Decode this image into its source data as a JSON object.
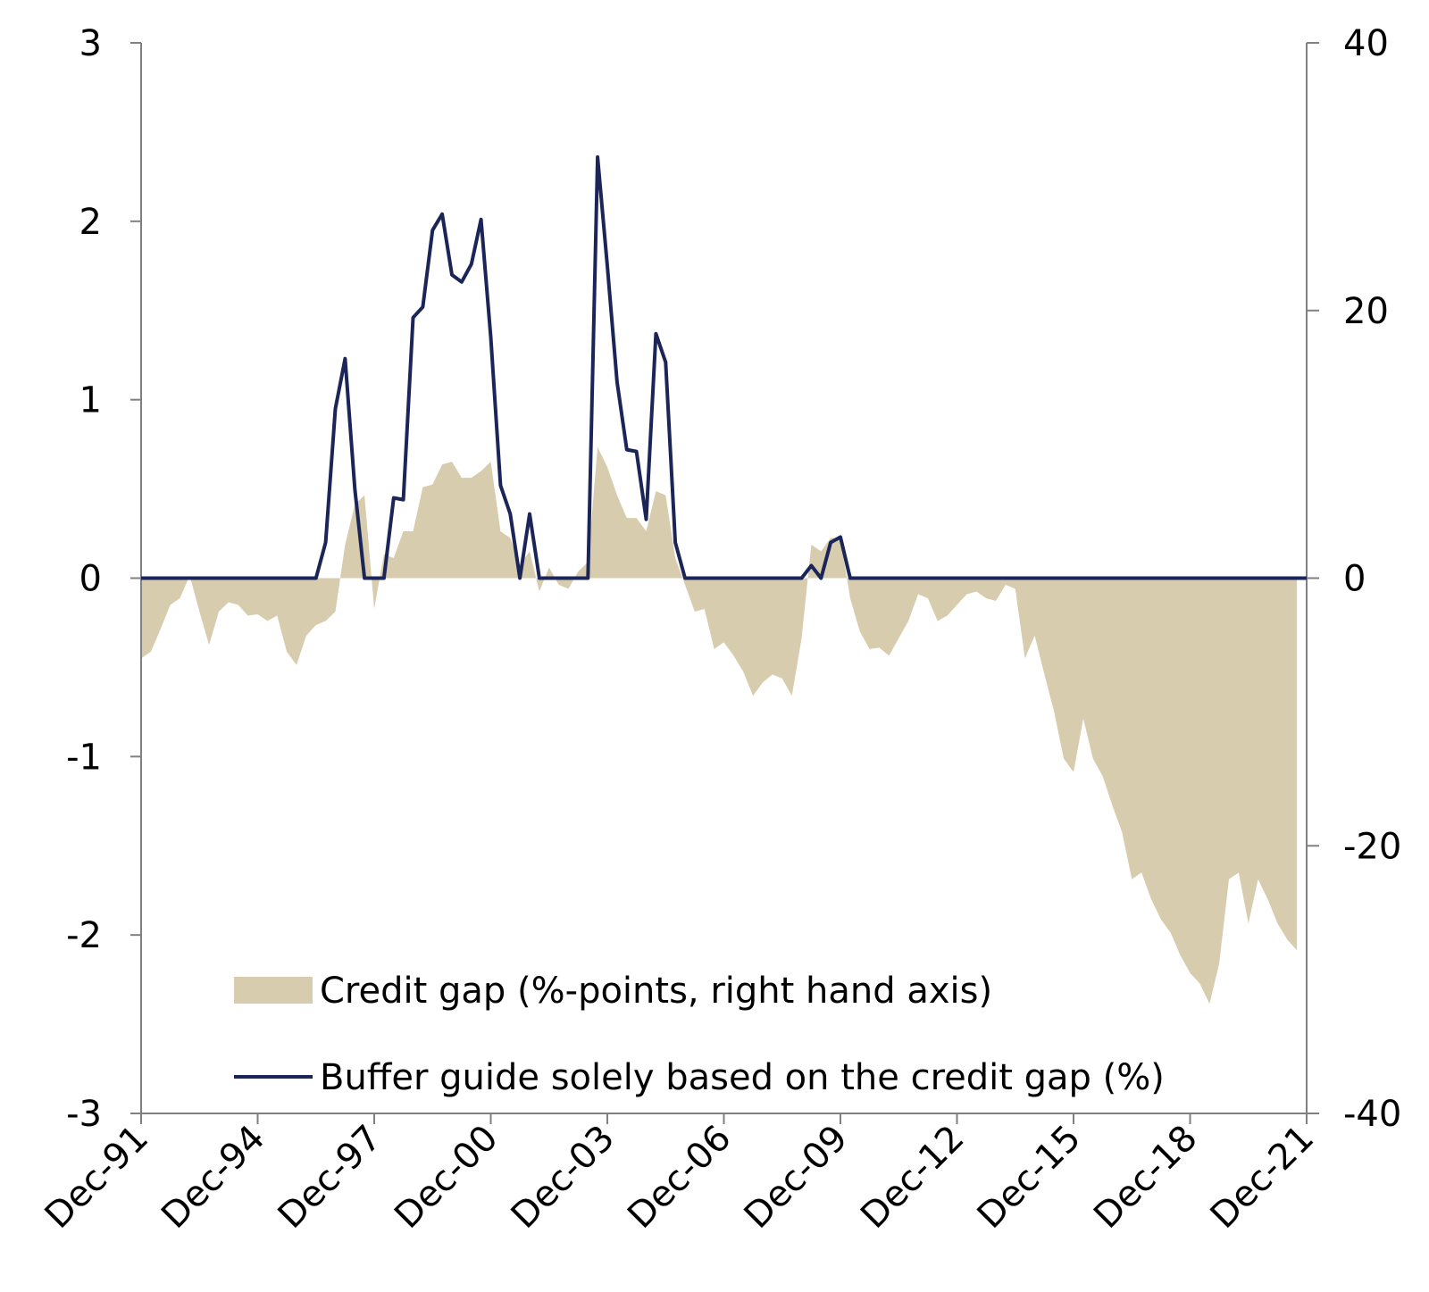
{
  "chart_data": {
    "type": "area",
    "x_ticks": [
      "Dec-91",
      "Dec-94",
      "Dec-97",
      "Dec-00",
      "Dec-03",
      "Dec-06",
      "Dec-09",
      "Dec-12",
      "Dec-15",
      "Dec-18",
      "Dec-21"
    ],
    "x_range": [
      "1991-12",
      "2021-12"
    ],
    "y_left": {
      "ticks": [
        "3",
        "2",
        "1",
        "0",
        "-1",
        "-2",
        "-3"
      ],
      "range": [
        -3,
        3
      ]
    },
    "y_right": {
      "ticks": [
        "40",
        "20",
        "0",
        "-20",
        "-40"
      ],
      "range": [
        -40,
        40
      ]
    },
    "grid": false,
    "legend_position": "bottom-left, inside plot",
    "series": [
      {
        "name": "Credit gap (%-points, right hand axis)",
        "kind": "area",
        "axis": "right",
        "color": "#d8ccae",
        "points": [
          [
            "1991-12",
            -6.0
          ],
          [
            "1992-03",
            -5.5
          ],
          [
            "1992-06",
            -3.8
          ],
          [
            "1992-09",
            -2.0
          ],
          [
            "1992-12",
            -1.5
          ],
          [
            "1993-03",
            0.2
          ],
          [
            "1993-06",
            -2.5
          ],
          [
            "1993-09",
            -5.0
          ],
          [
            "1993-12",
            -2.5
          ],
          [
            "1994-03",
            -1.8
          ],
          [
            "1994-06",
            -2.0
          ],
          [
            "1994-09",
            -2.8
          ],
          [
            "1994-12",
            -2.7
          ],
          [
            "1995-03",
            -3.2
          ],
          [
            "1995-06",
            -2.8
          ],
          [
            "1995-09",
            -5.5
          ],
          [
            "1995-12",
            -6.5
          ],
          [
            "1996-03",
            -4.3
          ],
          [
            "1996-06",
            -3.5
          ],
          [
            "1996-09",
            -3.2
          ],
          [
            "1996-12",
            -2.5
          ],
          [
            "1997-03",
            2.5
          ],
          [
            "1997-06",
            5.5
          ],
          [
            "1997-09",
            6.2
          ],
          [
            "1997-12",
            -2.3
          ],
          [
            "1998-03",
            1.8
          ],
          [
            "1998-06",
            1.5
          ],
          [
            "1998-09",
            3.5
          ],
          [
            "1998-12",
            3.5
          ],
          [
            "1999-03",
            6.8
          ],
          [
            "1999-06",
            7.0
          ],
          [
            "1999-09",
            8.5
          ],
          [
            "1999-12",
            8.7
          ],
          [
            "2000-03",
            7.5
          ],
          [
            "2000-06",
            7.5
          ],
          [
            "2000-09",
            8.0
          ],
          [
            "2000-12",
            8.7
          ],
          [
            "2001-03",
            3.5
          ],
          [
            "2001-06",
            3.0
          ],
          [
            "2001-09",
            1.0
          ],
          [
            "2001-12",
            2.0
          ],
          [
            "2002-03",
            -1.0
          ],
          [
            "2002-06",
            0.8
          ],
          [
            "2002-09",
            -0.5
          ],
          [
            "2002-12",
            -0.8
          ],
          [
            "2003-03",
            0.5
          ],
          [
            "2003-06",
            1.2
          ],
          [
            "2003-09",
            9.8
          ],
          [
            "2003-12",
            8.3
          ],
          [
            "2004-03",
            6.2
          ],
          [
            "2004-06",
            4.5
          ],
          [
            "2004-09",
            4.5
          ],
          [
            "2004-12",
            3.5
          ],
          [
            "2005-03",
            6.5
          ],
          [
            "2005-06",
            6.2
          ],
          [
            "2005-09",
            1.5
          ],
          [
            "2005-12",
            -0.5
          ],
          [
            "2006-03",
            -2.5
          ],
          [
            "2006-06",
            -2.3
          ],
          [
            "2006-09",
            -5.3
          ],
          [
            "2006-12",
            -4.8
          ],
          [
            "2007-03",
            -5.8
          ],
          [
            "2007-06",
            -7.0
          ],
          [
            "2007-09",
            -8.8
          ],
          [
            "2007-12",
            -7.8
          ],
          [
            "2008-03",
            -7.2
          ],
          [
            "2008-06",
            -7.5
          ],
          [
            "2008-09",
            -8.8
          ],
          [
            "2008-12",
            -4.5
          ],
          [
            "2009-03",
            2.5
          ],
          [
            "2009-06",
            2.0
          ],
          [
            "2009-09",
            3.0
          ],
          [
            "2009-12",
            3.0
          ],
          [
            "2010-03",
            -1.5
          ],
          [
            "2010-06",
            -4.0
          ],
          [
            "2010-09",
            -5.3
          ],
          [
            "2010-12",
            -5.2
          ],
          [
            "2011-03",
            -5.8
          ],
          [
            "2011-06",
            -4.5
          ],
          [
            "2011-09",
            -3.2
          ],
          [
            "2011-12",
            -1.2
          ],
          [
            "2012-03",
            -1.5
          ],
          [
            "2012-06",
            -3.2
          ],
          [
            "2012-09",
            -2.8
          ],
          [
            "2012-12",
            -2.0
          ],
          [
            "2013-03",
            -1.2
          ],
          [
            "2013-06",
            -1.0
          ],
          [
            "2013-09",
            -1.5
          ],
          [
            "2013-12",
            -1.7
          ],
          [
            "2014-03",
            -0.5
          ],
          [
            "2014-06",
            -0.8
          ],
          [
            "2014-09",
            -6.0
          ],
          [
            "2014-12",
            -4.3
          ],
          [
            "2015-03",
            -7.2
          ],
          [
            "2015-06",
            -10.0
          ],
          [
            "2015-09",
            -13.5
          ],
          [
            "2015-12",
            -14.5
          ],
          [
            "2016-03",
            -10.5
          ],
          [
            "2016-06",
            -13.5
          ],
          [
            "2016-09",
            -14.8
          ],
          [
            "2016-12",
            -17.0
          ],
          [
            "2017-03",
            -19.0
          ],
          [
            "2017-06",
            -22.5
          ],
          [
            "2017-09",
            -22.0
          ],
          [
            "2017-12",
            -24.0
          ],
          [
            "2018-03",
            -25.5
          ],
          [
            "2018-06",
            -26.5
          ],
          [
            "2018-09",
            -28.2
          ],
          [
            "2018-12",
            -29.5
          ],
          [
            "2019-03",
            -30.3
          ],
          [
            "2019-06",
            -31.8
          ],
          [
            "2019-09",
            -28.8
          ],
          [
            "2019-12",
            -22.5
          ],
          [
            "2020-03",
            -22.0
          ],
          [
            "2020-06",
            -25.8
          ],
          [
            "2020-09",
            -22.5
          ],
          [
            "2020-12",
            -24.0
          ],
          [
            "2021-03",
            -25.8
          ],
          [
            "2021-06",
            -27.0
          ],
          [
            "2021-09",
            -27.8
          ]
        ]
      },
      {
        "name": "Buffer guide solely based on the credit gap (%)",
        "kind": "line",
        "axis": "left",
        "color": "#1b2557",
        "points": [
          [
            "1991-12",
            0
          ],
          [
            "1996-06",
            0
          ],
          [
            "1996-09",
            0.2
          ],
          [
            "1996-12",
            0.95
          ],
          [
            "1997-03",
            1.23
          ],
          [
            "1997-06",
            0.5
          ],
          [
            "1997-09",
            0
          ],
          [
            "1998-03",
            0
          ],
          [
            "1998-06",
            0.45
          ],
          [
            "1998-09",
            0.44
          ],
          [
            "1998-12",
            1.46
          ],
          [
            "1999-03",
            1.52
          ],
          [
            "1999-06",
            1.95
          ],
          [
            "1999-09",
            2.04
          ],
          [
            "1999-12",
            1.7
          ],
          [
            "2000-03",
            1.66
          ],
          [
            "2000-06",
            1.76
          ],
          [
            "2000-09",
            2.01
          ],
          [
            "2000-12",
            1.35
          ],
          [
            "2001-03",
            0.52
          ],
          [
            "2001-06",
            0.36
          ],
          [
            "2001-09",
            0.0
          ],
          [
            "2001-12",
            0.36
          ],
          [
            "2002-03",
            0
          ],
          [
            "2003-06",
            0
          ],
          [
            "2003-09",
            2.36
          ],
          [
            "2003-12",
            1.75
          ],
          [
            "2004-03",
            1.1
          ],
          [
            "2004-06",
            0.72
          ],
          [
            "2004-09",
            0.71
          ],
          [
            "2004-12",
            0.33
          ],
          [
            "2005-03",
            1.37
          ],
          [
            "2005-06",
            1.21
          ],
          [
            "2005-09",
            0.2
          ],
          [
            "2005-12",
            0
          ],
          [
            "2008-12",
            0
          ],
          [
            "2009-03",
            0.07
          ],
          [
            "2009-06",
            0.0
          ],
          [
            "2009-09",
            0.2
          ],
          [
            "2009-12",
            0.23
          ],
          [
            "2010-03",
            0
          ],
          [
            "2021-12",
            0
          ]
        ]
      }
    ]
  }
}
